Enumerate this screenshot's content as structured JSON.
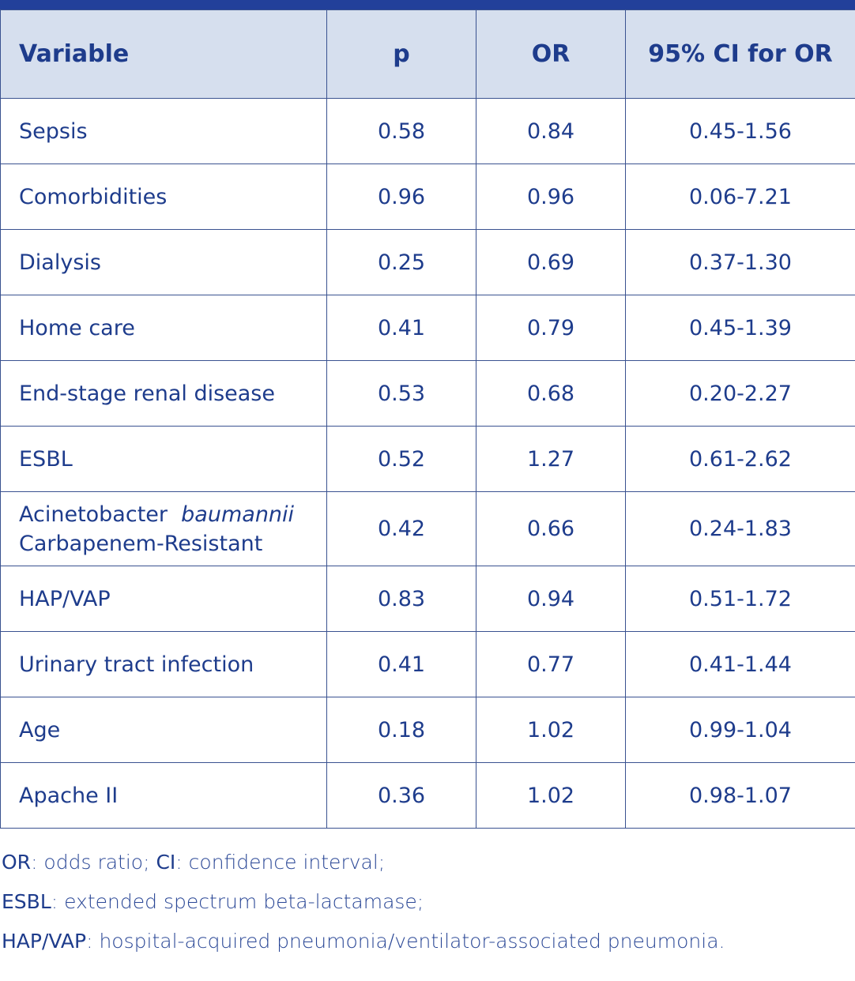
{
  "table": {
    "headers": {
      "variable": "Variable",
      "p": "p",
      "or": "OR",
      "ci": "95% CI for OR"
    },
    "rows": [
      {
        "variable": "Sepsis",
        "p": "0.58",
        "or": "0.84",
        "ci": "0.45-1.56"
      },
      {
        "variable": "Comorbidities",
        "p": "0.96",
        "or": "0.96",
        "ci": "0.06-7.21"
      },
      {
        "variable": "Dialysis",
        "p": "0.25",
        "or": "0.69",
        "ci": "0.37-1.30"
      },
      {
        "variable": "Home care",
        "p": "0.41",
        "or": "0.79",
        "ci": "0.45-1.39"
      },
      {
        "variable": "End-stage renal disease",
        "p": "0.53",
        "or": "0.68",
        "ci": "0.20-2.27"
      },
      {
        "variable": "ESBL",
        "p": "0.52",
        "or": "1.27",
        "ci": "0.61-2.62"
      },
      {
        "variable_line1": "Acinetobacter",
        "variable_italic": "baumannii",
        "variable_line2": "Carbapenem-Resistant",
        "p": "0.42",
        "or": "0.66",
        "ci": "0.24-1.83"
      },
      {
        "variable": "HAP/VAP",
        "p": "0.83",
        "or": "0.94",
        "ci": "0.51-1.72"
      },
      {
        "variable": "Urinary tract infection",
        "p": "0.41",
        "or": "0.77",
        "ci": "0.41-1.44"
      },
      {
        "variable": "Age",
        "p": "0.18",
        "or": "1.02",
        "ci": "0.99-1.04"
      },
      {
        "variable": "Apache II",
        "p": "0.36",
        "or": "1.02",
        "ci": "0.98-1.07"
      }
    ]
  },
  "footnotes": [
    {
      "abbr": "OR",
      "text": ": odds ratio; "
    },
    {
      "abbr": "CI",
      "text": ": confidence interval;"
    },
    {
      "abbr": "ESBL",
      "text": ": extended spectrum beta-lactamase;"
    },
    {
      "abbr": "HAP/VAP",
      "text": ": hospital-acquired pneumonia/ventilator-associated pneumonia."
    }
  ],
  "colors": {
    "accent": "#22409a",
    "header_bg": "#d6dfee",
    "text": "#1e3c8c"
  }
}
